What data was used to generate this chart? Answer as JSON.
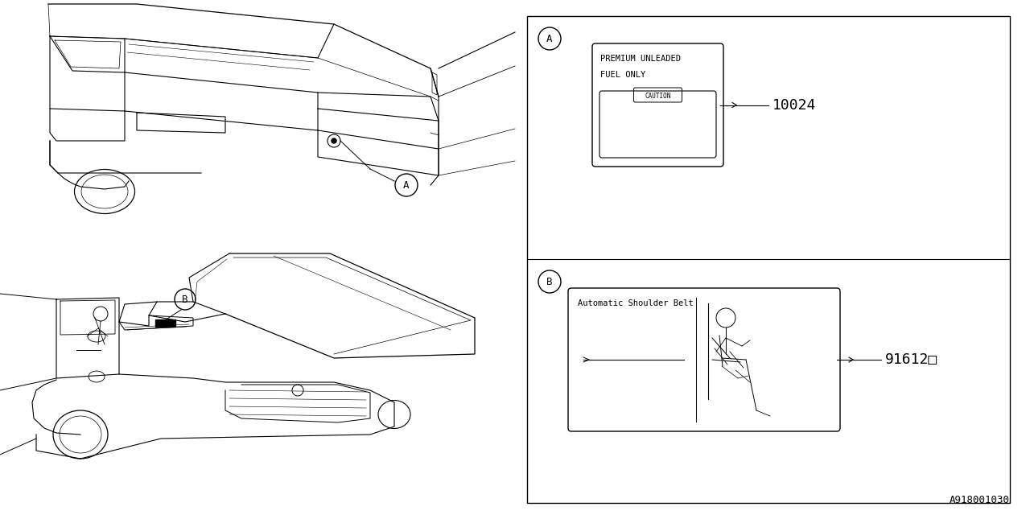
{
  "bg_color": "#ffffff",
  "line_color": "#000000",
  "part_A_number": "10024",
  "part_B_number": "91612□",
  "label_A_text1": "PREMIUM UNLEADED",
  "label_A_text2": "FUEL ONLY",
  "label_A_caution": "CAUTION",
  "label_B_text": "Automatic Shoulder Belt",
  "footer_text": "A918001030",
  "font_family": "monospace",
  "fig_width": 12.8,
  "fig_height": 6.4,
  "dpi": 100
}
